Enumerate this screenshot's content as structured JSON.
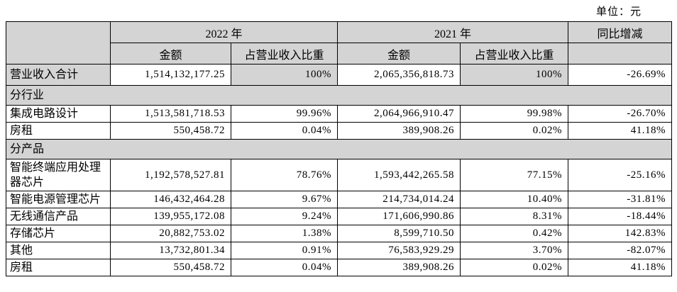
{
  "unit_label": "单位：元",
  "table": {
    "headers": {
      "year_2022": "2022 年",
      "year_2021": "2021 年",
      "yoy": "同比增减",
      "amount": "金额",
      "pct_of_revenue": "占营业收入比重"
    },
    "rows": [
      {
        "type": "total",
        "label": "营业收入合计",
        "amount_2022": "1,514,132,177.25",
        "pct_2022": "100%",
        "amount_2021": "2,065,356,818.73",
        "pct_2021": "100%",
        "yoy": "-26.69%"
      },
      {
        "type": "section",
        "label": "分行业"
      },
      {
        "type": "data",
        "label": "集成电路设计",
        "amount_2022": "1,513,581,718.53",
        "pct_2022": "99.96%",
        "amount_2021": "2,064,966,910.47",
        "pct_2021": "99.98%",
        "yoy": "-26.70%"
      },
      {
        "type": "data",
        "label": "房租",
        "amount_2022": "550,458.72",
        "pct_2022": "0.04%",
        "amount_2021": "389,908.26",
        "pct_2021": "0.02%",
        "yoy": "41.18%"
      },
      {
        "type": "section",
        "label": "分产品"
      },
      {
        "type": "data",
        "label": "智能终端应用处理器芯片",
        "amount_2022": "1,192,578,527.81",
        "pct_2022": "78.76%",
        "amount_2021": "1,593,442,265.58",
        "pct_2021": "77.15%",
        "yoy": "-25.16%"
      },
      {
        "type": "data",
        "label": "智能电源管理芯片",
        "amount_2022": "146,432,464.28",
        "pct_2022": "9.67%",
        "amount_2021": "214,734,014.24",
        "pct_2021": "10.40%",
        "yoy": "-31.81%"
      },
      {
        "type": "data",
        "label": "无线通信产品",
        "amount_2022": "139,955,172.08",
        "pct_2022": "9.24%",
        "amount_2021": "171,606,990.86",
        "pct_2021": "8.31%",
        "yoy": "-18.44%"
      },
      {
        "type": "data",
        "label": "存储芯片",
        "amount_2022": "20,882,753.02",
        "pct_2022": "1.38%",
        "amount_2021": "8,599,710.50",
        "pct_2021": "0.42%",
        "yoy": "142.83%"
      },
      {
        "type": "data",
        "label": "其他",
        "amount_2022": "13,732,801.34",
        "pct_2022": "0.91%",
        "amount_2021": "76,583,929.29",
        "pct_2021": "3.70%",
        "yoy": "-82.07%"
      },
      {
        "type": "data",
        "label": "房租",
        "amount_2022": "550,458.72",
        "pct_2022": "0.04%",
        "amount_2021": "389,908.26",
        "pct_2021": "0.02%",
        "yoy": "41.18%"
      }
    ]
  },
  "colors": {
    "header_bg": "#d4d4d4",
    "border": "#000000",
    "text": "#000000",
    "page_bg": "#ffffff"
  }
}
